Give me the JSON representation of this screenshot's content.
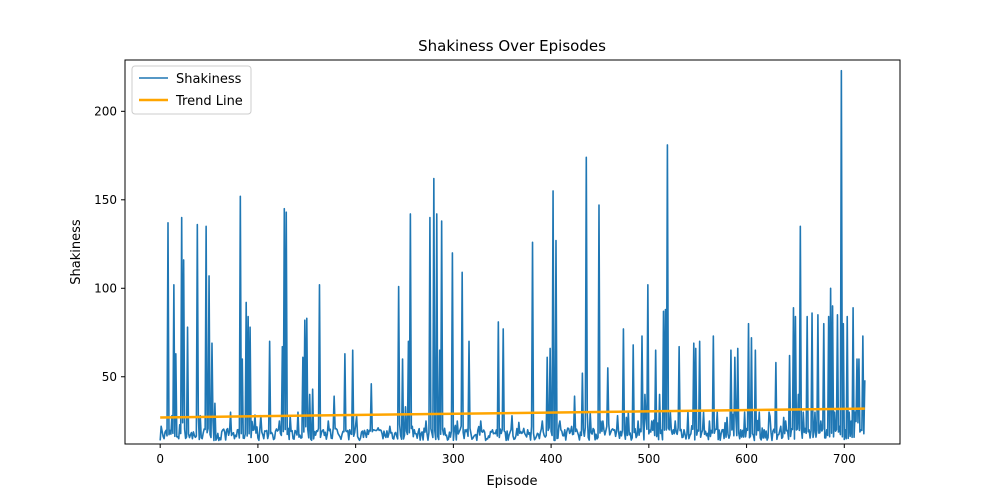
{
  "chart_data": {
    "type": "line",
    "title": "Shakiness Over Episodes",
    "xlabel": "Episode",
    "ylabel": "Shakiness",
    "xlim": [
      -36,
      757
    ],
    "ylim": [
      12,
      229
    ],
    "xticks": [
      0,
      100,
      200,
      300,
      400,
      500,
      600,
      700
    ],
    "yticks": [
      50,
      100,
      150,
      200
    ],
    "grid": false,
    "legend_position": "upper-left",
    "series": [
      {
        "name": "Shakiness",
        "color": "#1f77b4",
        "x_start": 0,
        "x_step": 1,
        "base_level": 17,
        "peaks": [
          [
            1,
            22
          ],
          [
            4,
            15
          ],
          [
            8,
            137
          ],
          [
            12,
            28
          ],
          [
            14,
            102
          ],
          [
            16,
            63
          ],
          [
            19,
            15
          ],
          [
            22,
            140
          ],
          [
            24,
            116
          ],
          [
            28,
            78
          ],
          [
            33,
            15
          ],
          [
            38,
            136
          ],
          [
            41,
            28
          ],
          [
            47,
            135
          ],
          [
            50,
            107
          ],
          [
            53,
            69
          ],
          [
            56,
            35
          ],
          [
            60,
            14
          ],
          [
            64,
            20
          ],
          [
            72,
            30
          ],
          [
            76,
            15
          ],
          [
            79,
            20
          ],
          [
            82,
            152
          ],
          [
            84,
            60
          ],
          [
            88,
            92
          ],
          [
            90,
            84
          ],
          [
            92,
            78
          ],
          [
            96,
            20
          ],
          [
            103,
            28
          ],
          [
            106,
            15
          ],
          [
            112,
            70
          ],
          [
            117,
            15
          ],
          [
            122,
            25
          ],
          [
            125,
            67
          ],
          [
            127,
            145
          ],
          [
            129,
            143
          ],
          [
            133,
            28
          ],
          [
            136,
            15
          ],
          [
            141,
            30
          ],
          [
            146,
            61
          ],
          [
            148,
            82
          ],
          [
            150,
            83
          ],
          [
            153,
            40
          ],
          [
            156,
            43
          ],
          [
            159,
            17
          ],
          [
            163,
            102
          ],
          [
            167,
            20
          ],
          [
            172,
            25
          ],
          [
            178,
            39
          ],
          [
            183,
            17
          ],
          [
            189,
            63
          ],
          [
            194,
            20
          ],
          [
            197,
            65
          ],
          [
            203,
            15
          ],
          [
            210,
            18
          ],
          [
            216,
            46
          ],
          [
            222,
            20
          ],
          [
            228,
            15
          ],
          [
            235,
            22
          ],
          [
            240,
            18
          ],
          [
            244,
            101
          ],
          [
            248,
            60
          ],
          [
            251,
            33
          ],
          [
            254,
            70
          ],
          [
            256,
            142
          ],
          [
            260,
            20
          ],
          [
            267,
            18
          ],
          [
            272,
            25
          ],
          [
            276,
            140
          ],
          [
            280,
            162
          ],
          [
            283,
            142
          ],
          [
            286,
            65
          ],
          [
            288,
            138
          ],
          [
            293,
            17
          ],
          [
            299,
            120
          ],
          [
            304,
            25
          ],
          [
            309,
            109
          ],
          [
            312,
            20
          ],
          [
            316,
            70
          ],
          [
            322,
            17
          ],
          [
            328,
            25
          ],
          [
            334,
            15
          ],
          [
            340,
            20
          ],
          [
            346,
            81
          ],
          [
            351,
            77
          ],
          [
            357,
            17
          ],
          [
            363,
            15
          ],
          [
            370,
            18
          ],
          [
            376,
            20
          ],
          [
            381,
            126
          ],
          [
            386,
            18
          ],
          [
            391,
            25
          ],
          [
            396,
            61
          ],
          [
            399,
            66
          ],
          [
            402,
            155
          ],
          [
            405,
            127
          ],
          [
            409,
            25
          ],
          [
            414,
            20
          ],
          [
            419,
            18
          ],
          [
            424,
            39
          ],
          [
            428,
            17
          ],
          [
            432,
            52
          ],
          [
            436,
            174
          ],
          [
            440,
            30
          ],
          [
            444,
            20
          ],
          [
            449,
            147
          ],
          [
            453,
            25
          ],
          [
            458,
            55
          ],
          [
            462,
            20
          ],
          [
            468,
            28
          ],
          [
            474,
            77
          ],
          [
            479,
            30
          ],
          [
            484,
            68
          ],
          [
            489,
            25
          ],
          [
            493,
            73
          ],
          [
            496,
            40
          ],
          [
            499,
            102
          ],
          [
            503,
            25
          ],
          [
            507,
            65
          ],
          [
            511,
            40
          ],
          [
            515,
            87
          ],
          [
            517,
            88
          ],
          [
            519,
            181
          ],
          [
            522,
            30
          ],
          [
            527,
            25
          ],
          [
            531,
            67
          ],
          [
            536,
            20
          ],
          [
            540,
            30
          ],
          [
            546,
            69
          ],
          [
            548,
            66
          ],
          [
            552,
            70
          ],
          [
            556,
            30
          ],
          [
            562,
            25
          ],
          [
            566,
            73
          ],
          [
            570,
            30
          ],
          [
            575,
            20
          ],
          [
            580,
            27
          ],
          [
            584,
            65
          ],
          [
            588,
            61
          ],
          [
            591,
            66
          ],
          [
            594,
            20
          ],
          [
            598,
            30
          ],
          [
            602,
            80
          ],
          [
            605,
            72
          ],
          [
            609,
            65
          ],
          [
            613,
            30
          ],
          [
            618,
            20
          ],
          [
            623,
            30
          ],
          [
            630,
            58
          ],
          [
            635,
            22
          ],
          [
            640,
            25
          ],
          [
            644,
            62
          ],
          [
            648,
            89
          ],
          [
            650,
            84
          ],
          [
            653,
            40
          ],
          [
            655,
            135
          ],
          [
            658,
            30
          ],
          [
            662,
            84
          ],
          [
            664,
            20
          ],
          [
            667,
            86
          ],
          [
            670,
            30
          ],
          [
            673,
            85
          ],
          [
            676,
            25
          ],
          [
            679,
            80
          ],
          [
            682,
            20
          ],
          [
            684,
            84
          ],
          [
            686,
            100
          ],
          [
            688,
            90
          ],
          [
            690,
            30
          ],
          [
            693,
            85
          ],
          [
            695,
            22
          ],
          [
            697,
            223
          ],
          [
            699,
            80
          ],
          [
            701,
            20
          ],
          [
            703,
            84
          ],
          [
            705,
            30
          ],
          [
            707,
            25
          ],
          [
            709,
            89
          ],
          [
            711,
            30
          ],
          [
            713,
            60
          ],
          [
            715,
            60
          ],
          [
            717,
            20
          ],
          [
            719,
            73
          ],
          [
            721,
            48
          ]
        ]
      },
      {
        "name": "Trend Line",
        "color": "#ffa500",
        "x": [
          0,
          721
        ],
        "y": [
          27,
          32
        ]
      }
    ],
    "n_points": 722
  }
}
